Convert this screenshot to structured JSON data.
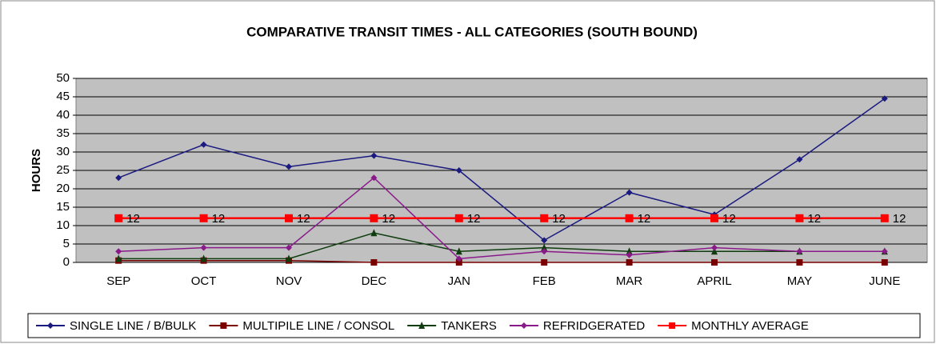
{
  "chart_data": {
    "type": "line",
    "title": "COMPARATIVE TRANSIT TIMES - ALL CATEGORIES (SOUTH BOUND)",
    "ylabel": "HOURS",
    "categories": [
      "SEP",
      "OCT",
      "NOV",
      "DEC",
      "JAN",
      "FEB",
      "MAR",
      "APRIL",
      "MAY",
      "JUNE"
    ],
    "ylim": [
      0,
      50
    ],
    "yticks": [
      0,
      5,
      10,
      15,
      20,
      25,
      30,
      35,
      40,
      45,
      50
    ],
    "grid": true,
    "legend": "bottom",
    "series": [
      {
        "name": "SINGLE LINE / B/BULK",
        "color": "#1a1a80",
        "marker": "diamond",
        "values": [
          23,
          32,
          26,
          29,
          25,
          6,
          19,
          13,
          28,
          44.5
        ]
      },
      {
        "name": "MULTIPILE LINE / CONSOL",
        "color": "#7a0000",
        "marker": "square",
        "values": [
          0.5,
          0.5,
          0.5,
          0,
          0,
          0,
          0,
          0,
          0,
          0
        ]
      },
      {
        "name": "TANKERS",
        "color": "#0f3d0f",
        "marker": "triangle",
        "values": [
          1,
          1,
          1,
          8,
          3,
          4,
          3,
          3,
          3,
          3
        ]
      },
      {
        "name": "REFRIDGERATED",
        "color": "#8a1a8a",
        "marker": "diamond",
        "values": [
          3,
          4,
          4,
          23,
          1,
          3,
          2,
          4,
          3,
          3
        ]
      },
      {
        "name": "MONTHLY AVERAGE",
        "color": "#ff0000",
        "marker": "square",
        "data_labels": true,
        "values": [
          12,
          12,
          12,
          12,
          12,
          12,
          12,
          12,
          12,
          12
        ]
      }
    ]
  }
}
